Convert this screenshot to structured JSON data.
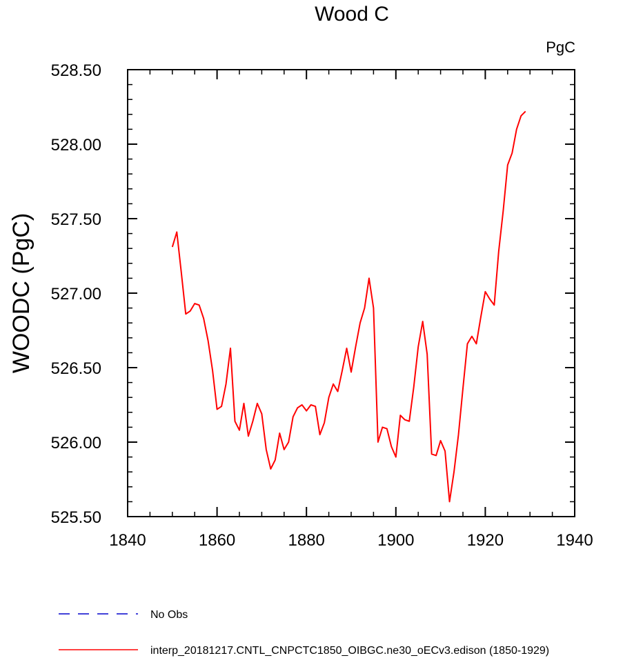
{
  "chart_data": {
    "type": "line",
    "title": "Wood C",
    "units_label": "PgC",
    "ylabel": "WOODC  (PgC)",
    "xlabel": "",
    "xlim": [
      1840,
      1940
    ],
    "ylim": [
      525.5,
      528.5
    ],
    "x_ticks": [
      1840,
      1860,
      1880,
      1900,
      1920,
      1940
    ],
    "y_ticks": [
      525.5,
      526.0,
      526.5,
      527.0,
      527.5,
      528.0,
      528.5
    ],
    "x_tick_labels": [
      "1840",
      "1860",
      "1880",
      "1900",
      "1920",
      "1940"
    ],
    "y_tick_labels": [
      "525.50",
      "526.00",
      "526.50",
      "527.00",
      "527.50",
      "528.00",
      "528.50"
    ],
    "grid": false,
    "legend_position": "bottom",
    "series": [
      {
        "name": "No Obs",
        "color": "#0000cc",
        "style": "dashed",
        "x": [],
        "y": []
      },
      {
        "name": "interp_20181217.CNTL_CNPCTC1850_OIBGC.ne30_oECv3.edison (1850-1929)",
        "color": "#ff0000",
        "style": "solid",
        "x": [
          1850,
          1851,
          1852,
          1853,
          1854,
          1855,
          1856,
          1857,
          1858,
          1859,
          1860,
          1861,
          1862,
          1863,
          1864,
          1865,
          1866,
          1867,
          1868,
          1869,
          1870,
          1871,
          1872,
          1873,
          1874,
          1875,
          1876,
          1877,
          1878,
          1879,
          1880,
          1881,
          1882,
          1883,
          1884,
          1885,
          1886,
          1887,
          1888,
          1889,
          1890,
          1891,
          1892,
          1893,
          1894,
          1895,
          1896,
          1897,
          1898,
          1899,
          1900,
          1901,
          1902,
          1903,
          1904,
          1905,
          1906,
          1907,
          1908,
          1909,
          1910,
          1911,
          1912,
          1913,
          1914,
          1915,
          1916,
          1917,
          1918,
          1919,
          1920,
          1921,
          1922,
          1923,
          1924,
          1925,
          1926,
          1927,
          1928,
          1929
        ],
        "y": [
          527.31,
          527.41,
          527.14,
          526.86,
          526.88,
          526.93,
          526.92,
          526.83,
          526.68,
          526.48,
          526.22,
          526.24,
          526.39,
          526.63,
          526.14,
          526.08,
          526.26,
          526.04,
          526.14,
          526.26,
          526.19,
          525.95,
          525.82,
          525.88,
          526.06,
          525.95,
          526.0,
          526.17,
          526.23,
          526.25,
          526.21,
          526.25,
          526.24,
          526.05,
          526.13,
          526.3,
          526.39,
          526.34,
          526.48,
          526.63,
          526.47,
          526.64,
          526.8,
          526.9,
          527.1,
          526.9,
          526.0,
          526.1,
          526.09,
          525.97,
          525.9,
          526.18,
          526.15,
          526.14,
          526.37,
          526.64,
          526.81,
          526.59,
          525.92,
          525.91,
          526.01,
          525.94,
          525.6,
          525.8,
          526.05,
          526.36,
          526.66,
          526.71,
          526.66,
          526.84,
          527.01,
          526.96,
          526.92,
          527.28,
          527.55,
          527.86,
          527.94,
          528.1,
          528.19,
          528.22
        ]
      }
    ]
  }
}
